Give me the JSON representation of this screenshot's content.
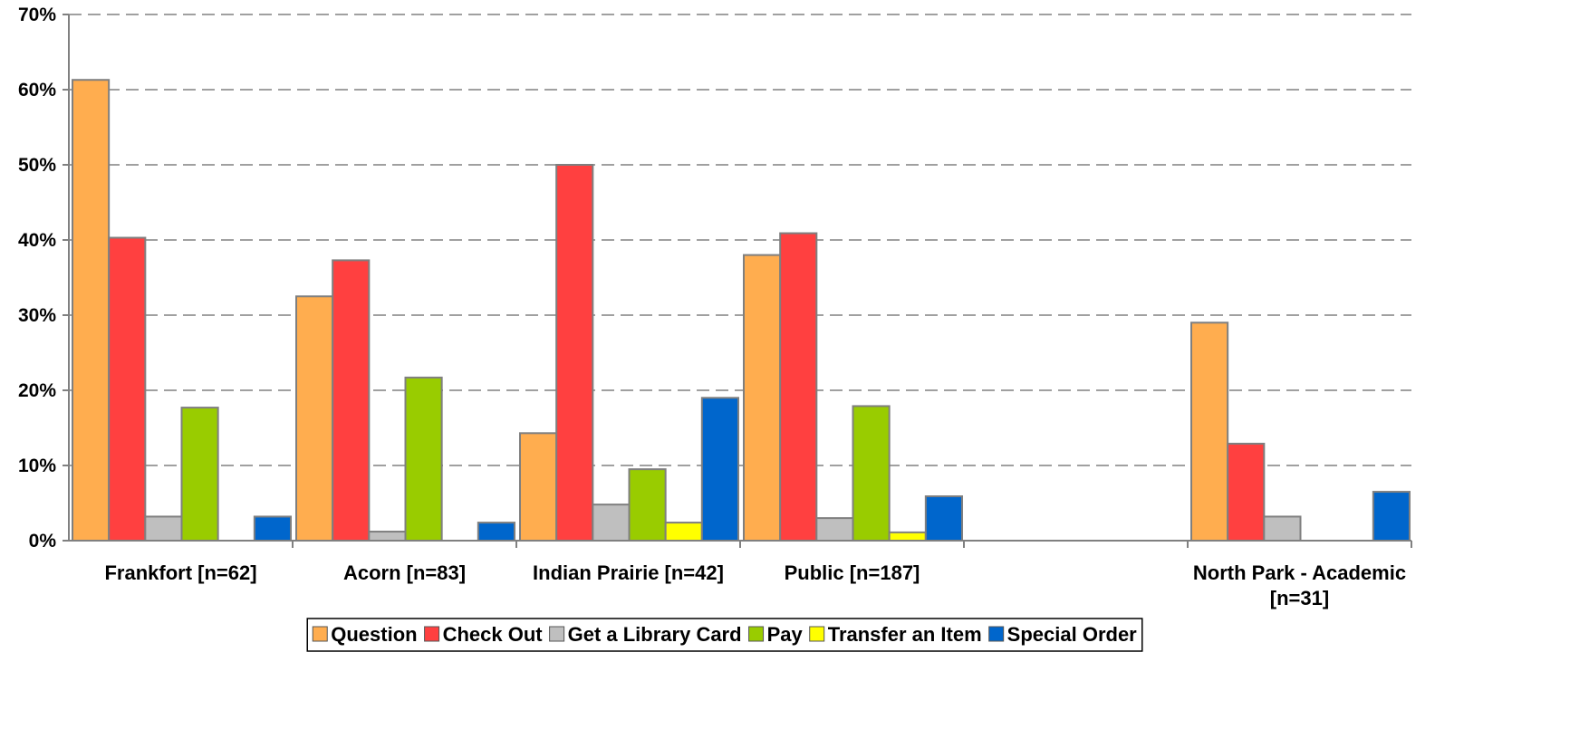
{
  "chart_data": {
    "type": "bar",
    "title": "",
    "xlabel": "",
    "ylabel": "",
    "ylim": [
      0,
      70
    ],
    "y_tick_step": 10,
    "y_tick_format": "percent",
    "grid": "horizontal dashed",
    "legend_position": "bottom",
    "categories": [
      [
        "Frankfort [n=62]"
      ],
      [
        "Acorn [n=83]"
      ],
      [
        "Indian Prairie [n=42]"
      ],
      [
        "Public [n=187]"
      ],
      [
        ""
      ],
      [
        "North Park - Academic",
        "[n=31]"
      ]
    ],
    "series": [
      {
        "name": "Question",
        "color": "#FFAD4F",
        "values": [
          61.3,
          32.5,
          14.3,
          38.0,
          null,
          29.0
        ]
      },
      {
        "name": "Check Out",
        "color": "#FF4040",
        "values": [
          40.3,
          37.3,
          50.0,
          40.9,
          null,
          12.9
        ]
      },
      {
        "name": "Get a Library Card",
        "color": "#BFBFBF",
        "values": [
          3.2,
          1.2,
          4.8,
          3.0,
          null,
          3.2
        ]
      },
      {
        "name": "Pay",
        "color": "#99CC00",
        "values": [
          17.7,
          21.7,
          9.5,
          17.9,
          null,
          null
        ]
      },
      {
        "name": "Transfer an Item",
        "color": "#FFFF00",
        "values": [
          null,
          null,
          2.4,
          1.1,
          null,
          null
        ]
      },
      {
        "name": "Special Order",
        "color": "#0066CC",
        "values": [
          3.2,
          2.4,
          19.0,
          5.9,
          null,
          6.5
        ]
      }
    ]
  }
}
